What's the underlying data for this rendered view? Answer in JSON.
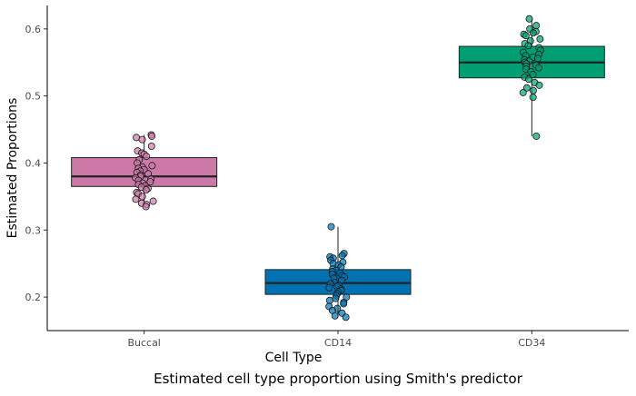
{
  "chart_data": {
    "type": "boxplot",
    "xlabel": "Cell Type",
    "ylabel": "Estimated Proportions",
    "caption": "Estimated cell type proportion using Smith's predictor",
    "ylim": [
      0.15,
      0.635
    ],
    "yticks": [
      0.2,
      0.3,
      0.4,
      0.5,
      0.6
    ],
    "ytick_labels": [
      "0.2",
      "0.3",
      "0.4",
      "0.5",
      "0.6"
    ],
    "categories": [
      "Buccal",
      "CD14",
      "CD34"
    ],
    "grid": false,
    "legend": "none",
    "boxes": [
      {
        "category": "Buccal",
        "color": "#CC79A7",
        "q1": 0.365,
        "median": 0.38,
        "q3": 0.408,
        "whisker_low": 0.335,
        "whisker_high": 0.442,
        "points": [
          0.442,
          0.44,
          0.438,
          0.435,
          0.425,
          0.418,
          0.415,
          0.413,
          0.41,
          0.405,
          0.4,
          0.396,
          0.394,
          0.392,
          0.39,
          0.388,
          0.386,
          0.384,
          0.382,
          0.38,
          0.378,
          0.376,
          0.374,
          0.372,
          0.37,
          0.368,
          0.366,
          0.364,
          0.362,
          0.36,
          0.356,
          0.354,
          0.35,
          0.346,
          0.343,
          0.34,
          0.338,
          0.335
        ]
      },
      {
        "category": "CD14",
        "color": "#0072B2",
        "q1": 0.204,
        "median": 0.221,
        "q3": 0.241,
        "whisker_low": 0.17,
        "whisker_high": 0.305,
        "points": [
          0.305,
          0.265,
          0.262,
          0.26,
          0.258,
          0.255,
          0.252,
          0.25,
          0.248,
          0.245,
          0.242,
          0.24,
          0.238,
          0.236,
          0.234,
          0.232,
          0.23,
          0.228,
          0.225,
          0.222,
          0.22,
          0.218,
          0.216,
          0.214,
          0.212,
          0.21,
          0.208,
          0.205,
          0.202,
          0.2,
          0.198,
          0.195,
          0.192,
          0.19,
          0.186,
          0.183,
          0.18,
          0.176,
          0.172,
          0.17
        ]
      },
      {
        "category": "CD34",
        "color": "#009E73",
        "q1": 0.527,
        "median": 0.55,
        "q3": 0.574,
        "whisker_low": 0.44,
        "whisker_high": 0.615,
        "points": [
          0.615,
          0.605,
          0.6,
          0.596,
          0.594,
          0.592,
          0.59,
          0.585,
          0.582,
          0.578,
          0.575,
          0.572,
          0.568,
          0.565,
          0.562,
          0.56,
          0.558,
          0.556,
          0.554,
          0.552,
          0.55,
          0.548,
          0.546,
          0.544,
          0.542,
          0.54,
          0.536,
          0.532,
          0.528,
          0.525,
          0.52,
          0.516,
          0.512,
          0.508,
          0.505,
          0.498,
          0.44
        ]
      }
    ]
  }
}
